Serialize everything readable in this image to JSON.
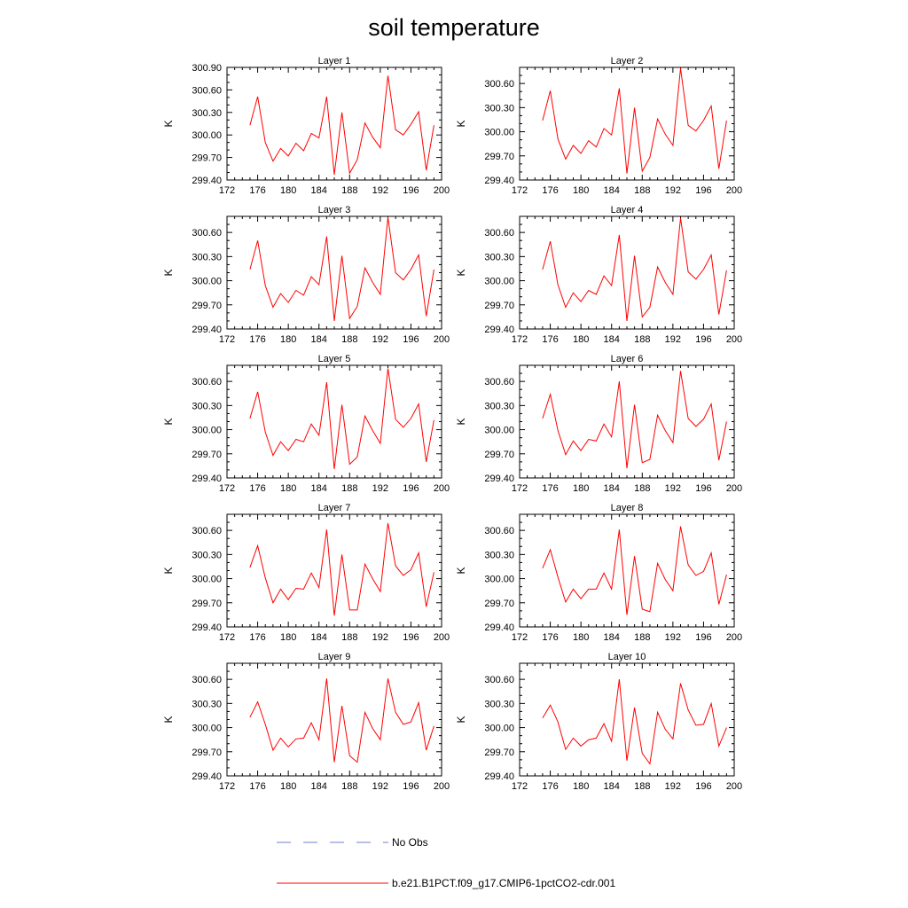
{
  "title": "soil temperature",
  "legend": {
    "placement": "bottom",
    "entries": [
      {
        "label": "No Obs",
        "color": "#6f7fcf",
        "style": "dashed"
      },
      {
        "label": "b.e21.B1PCT.f09_g17.CMIP6-1pctCO2-cdr.001",
        "color": "#ff0000",
        "style": "solid"
      }
    ]
  },
  "chart_data": [
    {
      "type": "line",
      "title": "Layer 1",
      "ylabel": "K",
      "xlim": [
        172,
        200
      ],
      "ylim": [
        299.4,
        300.9
      ],
      "xticks": [
        "172",
        "176",
        "180",
        "184",
        "188",
        "192",
        "196",
        "200"
      ],
      "yticks": [
        "299.40",
        "299.70",
        "300.00",
        "300.30",
        "300.60",
        "300.90"
      ],
      "series": [
        {
          "color": "#ff0000",
          "x": [
            175,
            176,
            177,
            178,
            179,
            180,
            181,
            182,
            183,
            184,
            185,
            186,
            187,
            188,
            189,
            190,
            191,
            192,
            193,
            194,
            195,
            196,
            197,
            198,
            199
          ],
          "y": [
            300.13,
            300.51,
            299.9,
            299.65,
            299.82,
            299.72,
            299.89,
            299.79,
            300.02,
            299.96,
            300.51,
            299.47,
            300.3,
            299.49,
            299.67,
            300.16,
            299.97,
            299.83,
            300.79,
            300.07,
            300.0,
            300.14,
            300.31,
            299.53,
            300.13
          ]
        }
      ]
    },
    {
      "type": "line",
      "title": "Layer 2",
      "ylabel": "K",
      "xlim": [
        172,
        200
      ],
      "ylim": [
        299.4,
        300.8
      ],
      "xticks": [
        "172",
        "176",
        "180",
        "184",
        "188",
        "192",
        "196",
        "200"
      ],
      "yticks": [
        "299.40",
        "299.70",
        "300.00",
        "300.30",
        "300.60"
      ],
      "series": [
        {
          "color": "#ff0000",
          "x": [
            175,
            176,
            177,
            178,
            179,
            180,
            181,
            182,
            183,
            184,
            185,
            186,
            187,
            188,
            189,
            190,
            191,
            192,
            193,
            194,
            195,
            196,
            197,
            198,
            199
          ],
          "y": [
            300.14,
            300.51,
            299.91,
            299.66,
            299.83,
            299.73,
            299.89,
            299.81,
            300.04,
            299.96,
            300.54,
            299.48,
            300.3,
            299.51,
            299.68,
            300.16,
            299.97,
            299.83,
            300.79,
            300.08,
            300.01,
            300.14,
            300.32,
            299.54,
            300.14
          ]
        }
      ]
    },
    {
      "type": "line",
      "title": "Layer 3",
      "ylabel": "K",
      "xlim": [
        172,
        200
      ],
      "ylim": [
        299.4,
        300.8
      ],
      "xticks": [
        "172",
        "176",
        "180",
        "184",
        "188",
        "192",
        "196",
        "200"
      ],
      "yticks": [
        "299.40",
        "299.70",
        "300.00",
        "300.30",
        "300.60"
      ],
      "series": [
        {
          "color": "#ff0000",
          "x": [
            175,
            176,
            177,
            178,
            179,
            180,
            181,
            182,
            183,
            184,
            185,
            186,
            187,
            188,
            189,
            190,
            191,
            192,
            193,
            194,
            195,
            196,
            197,
            198,
            199
          ],
          "y": [
            300.14,
            300.5,
            299.94,
            299.67,
            299.84,
            299.73,
            299.88,
            299.82,
            300.05,
            299.95,
            300.55,
            299.5,
            300.31,
            299.53,
            299.68,
            300.16,
            299.98,
            299.83,
            300.79,
            300.1,
            300.01,
            300.14,
            300.32,
            299.56,
            300.14
          ]
        }
      ]
    },
    {
      "type": "line",
      "title": "Layer 4",
      "ylabel": "K",
      "xlim": [
        172,
        200
      ],
      "ylim": [
        299.4,
        300.8
      ],
      "xticks": [
        "172",
        "176",
        "180",
        "184",
        "188",
        "192",
        "196",
        "200"
      ],
      "yticks": [
        "299.40",
        "299.70",
        "300.00",
        "300.30",
        "300.60"
      ],
      "series": [
        {
          "color": "#ff0000",
          "x": [
            175,
            176,
            177,
            178,
            179,
            180,
            181,
            182,
            183,
            184,
            185,
            186,
            187,
            188,
            189,
            190,
            191,
            192,
            193,
            194,
            195,
            196,
            197,
            198,
            199
          ],
          "y": [
            300.14,
            300.49,
            299.95,
            299.67,
            299.85,
            299.74,
            299.88,
            299.83,
            300.06,
            299.94,
            300.57,
            299.5,
            300.31,
            299.55,
            299.67,
            300.17,
            299.98,
            299.83,
            300.78,
            300.11,
            300.02,
            300.14,
            300.32,
            299.58,
            300.13
          ]
        }
      ]
    },
    {
      "type": "line",
      "title": "Layer 5",
      "ylabel": "K",
      "xlim": [
        172,
        200
      ],
      "ylim": [
        299.4,
        300.8
      ],
      "xticks": [
        "172",
        "176",
        "180",
        "184",
        "188",
        "192",
        "196",
        "200"
      ],
      "yticks": [
        "299.40",
        "299.70",
        "300.00",
        "300.30",
        "300.60"
      ],
      "series": [
        {
          "color": "#ff0000",
          "x": [
            175,
            176,
            177,
            178,
            179,
            180,
            181,
            182,
            183,
            184,
            185,
            186,
            187,
            188,
            189,
            190,
            191,
            192,
            193,
            194,
            195,
            196,
            197,
            198,
            199
          ],
          "y": [
            300.14,
            300.47,
            299.97,
            299.68,
            299.85,
            299.74,
            299.88,
            299.85,
            300.07,
            299.93,
            300.59,
            299.51,
            300.31,
            299.57,
            299.66,
            300.17,
            299.99,
            299.83,
            300.76,
            300.13,
            300.03,
            300.14,
            300.32,
            299.6,
            300.12
          ]
        }
      ]
    },
    {
      "type": "line",
      "title": "Layer 6",
      "ylabel": "K",
      "xlim": [
        172,
        200
      ],
      "ylim": [
        299.4,
        300.8
      ],
      "xticks": [
        "172",
        "176",
        "180",
        "184",
        "188",
        "192",
        "196",
        "200"
      ],
      "yticks": [
        "299.40",
        "299.70",
        "300.00",
        "300.30",
        "300.60"
      ],
      "series": [
        {
          "color": "#ff0000",
          "x": [
            175,
            176,
            177,
            178,
            179,
            180,
            181,
            182,
            183,
            184,
            185,
            186,
            187,
            188,
            189,
            190,
            191,
            192,
            193,
            194,
            195,
            196,
            197,
            198,
            199
          ],
          "y": [
            300.14,
            300.44,
            299.99,
            299.69,
            299.86,
            299.74,
            299.88,
            299.86,
            300.07,
            299.91,
            300.6,
            299.52,
            300.31,
            299.59,
            299.63,
            300.18,
            299.99,
            299.84,
            300.73,
            300.14,
            300.04,
            300.13,
            300.32,
            299.62,
            300.1
          ]
        }
      ]
    },
    {
      "type": "line",
      "title": "Layer 7",
      "ylabel": "K",
      "xlim": [
        172,
        200
      ],
      "ylim": [
        299.4,
        300.8
      ],
      "xticks": [
        "172",
        "176",
        "180",
        "184",
        "188",
        "192",
        "196",
        "200"
      ],
      "yticks": [
        "299.40",
        "299.70",
        "300.00",
        "300.30",
        "300.60"
      ],
      "series": [
        {
          "color": "#ff0000",
          "x": [
            175,
            176,
            177,
            178,
            179,
            180,
            181,
            182,
            183,
            184,
            185,
            186,
            187,
            188,
            189,
            190,
            191,
            192,
            193,
            194,
            195,
            196,
            197,
            198,
            199
          ],
          "y": [
            300.14,
            300.41,
            300.01,
            299.7,
            299.87,
            299.74,
            299.88,
            299.87,
            300.07,
            299.89,
            300.61,
            299.54,
            300.3,
            299.61,
            299.61,
            300.18,
            300.0,
            299.84,
            300.69,
            300.16,
            300.04,
            300.11,
            300.32,
            299.65,
            300.08
          ]
        }
      ]
    },
    {
      "type": "line",
      "title": "Layer 8",
      "ylabel": "K",
      "xlim": [
        172,
        200
      ],
      "ylim": [
        299.4,
        300.8
      ],
      "xticks": [
        "172",
        "176",
        "180",
        "184",
        "188",
        "192",
        "196",
        "200"
      ],
      "yticks": [
        "299.40",
        "299.70",
        "300.00",
        "300.30",
        "300.60"
      ],
      "series": [
        {
          "color": "#ff0000",
          "x": [
            175,
            176,
            177,
            178,
            179,
            180,
            181,
            182,
            183,
            184,
            185,
            186,
            187,
            188,
            189,
            190,
            191,
            192,
            193,
            194,
            195,
            196,
            197,
            198,
            199
          ],
          "y": [
            300.13,
            300.36,
            300.02,
            299.71,
            299.87,
            299.75,
            299.87,
            299.87,
            300.07,
            299.87,
            300.61,
            299.55,
            300.28,
            299.62,
            299.59,
            300.19,
            299.99,
            299.85,
            300.65,
            300.17,
            300.04,
            300.09,
            300.32,
            299.68,
            300.05
          ]
        }
      ]
    },
    {
      "type": "line",
      "title": "Layer 9",
      "ylabel": "K",
      "xlim": [
        172,
        200
      ],
      "ylim": [
        299.4,
        300.8
      ],
      "xticks": [
        "172",
        "176",
        "180",
        "184",
        "188",
        "192",
        "196",
        "200"
      ],
      "yticks": [
        "299.40",
        "299.70",
        "300.00",
        "300.30",
        "300.60"
      ],
      "series": [
        {
          "color": "#ff0000",
          "x": [
            175,
            176,
            177,
            178,
            179,
            180,
            181,
            182,
            183,
            184,
            185,
            186,
            187,
            188,
            189,
            190,
            191,
            192,
            193,
            194,
            195,
            196,
            197,
            198,
            199
          ],
          "y": [
            300.13,
            300.32,
            300.04,
            299.72,
            299.87,
            299.76,
            299.86,
            299.87,
            300.06,
            299.85,
            300.61,
            299.57,
            300.27,
            299.65,
            299.57,
            300.19,
            299.99,
            299.85,
            300.61,
            300.19,
            300.04,
            300.07,
            300.31,
            299.72,
            300.02
          ]
        }
      ]
    },
    {
      "type": "line",
      "title": "Layer 10",
      "ylabel": "K",
      "xlim": [
        172,
        200
      ],
      "ylim": [
        299.4,
        300.8
      ],
      "xticks": [
        "172",
        "176",
        "180",
        "184",
        "188",
        "192",
        "196",
        "200"
      ],
      "yticks": [
        "299.40",
        "299.70",
        "300.00",
        "300.30",
        "300.60"
      ],
      "series": [
        {
          "color": "#ff0000",
          "x": [
            175,
            176,
            177,
            178,
            179,
            180,
            181,
            182,
            183,
            184,
            185,
            186,
            187,
            188,
            189,
            190,
            191,
            192,
            193,
            194,
            195,
            196,
            197,
            198,
            199
          ],
          "y": [
            300.12,
            300.28,
            300.07,
            299.73,
            299.87,
            299.77,
            299.85,
            299.87,
            300.05,
            299.83,
            300.6,
            299.59,
            300.25,
            299.68,
            299.55,
            300.19,
            299.98,
            299.86,
            300.55,
            300.22,
            300.03,
            300.04,
            300.3,
            299.77,
            300.0
          ]
        }
      ]
    }
  ]
}
